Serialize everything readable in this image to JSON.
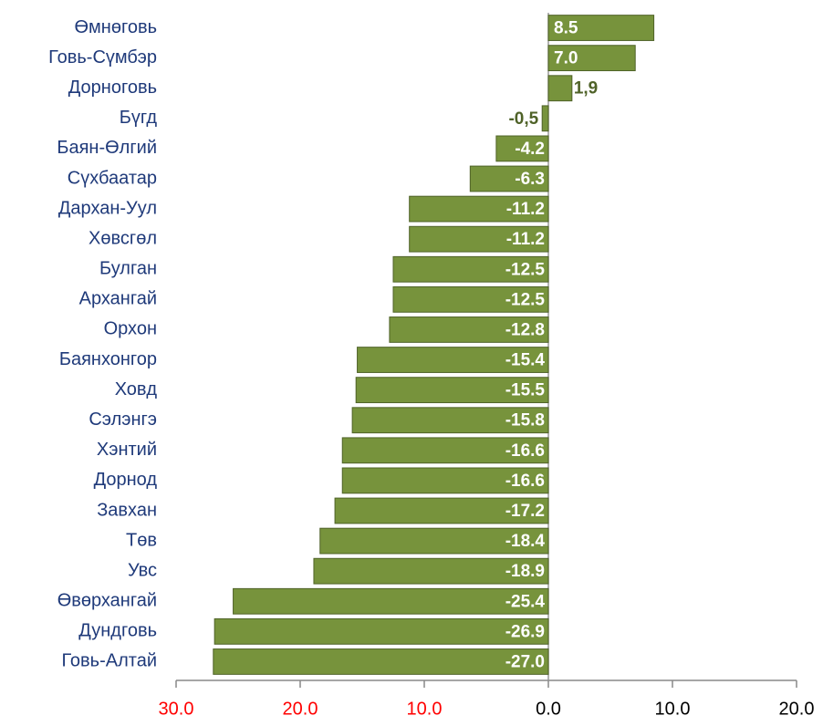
{
  "chart_data": {
    "type": "bar",
    "orientation": "horizontal",
    "categories": [
      "Өмнөговь",
      "Говь-Сүмбэр",
      "Дорноговь",
      "Бүгд",
      "Баян-Өлгий",
      "Сүхбаатар",
      "Дархан-Уул",
      "Хөвсгөл",
      "Булган",
      "Архангай",
      "Орхон",
      "Баянхонгор",
      "Ховд",
      "Сэлэнгэ",
      "Хэнтий",
      "Дорнод",
      "Завхан",
      "Төв",
      "Увс",
      "Өвөрхангай",
      "Дундговь",
      "Говь-Алтай"
    ],
    "values": [
      8.5,
      7.0,
      1.9,
      -0.5,
      -4.2,
      -6.3,
      -11.2,
      -11.2,
      -12.5,
      -12.5,
      -12.8,
      -15.4,
      -15.5,
      -15.8,
      -16.6,
      -16.6,
      -17.2,
      -18.4,
      -18.9,
      -25.4,
      -26.9,
      -27.0
    ],
    "value_labels": [
      "8.5",
      "7.0",
      "1,9",
      "-0,5",
      "-4.2",
      "-6.3",
      "-11.2",
      "-11.2",
      "-12.5",
      "-12.5",
      "-12.8",
      "-15.4",
      "-15.5",
      "-15.8",
      "-16.6",
      "-16.6",
      "-17.2",
      "-18.4",
      "-18.9",
      "-25.4",
      "-26.9",
      "-27.0"
    ],
    "color": "#77933c",
    "border_color": "#4f6228",
    "xlim": [
      -30,
      20
    ],
    "xticks": [
      {
        "value": -30,
        "label": "30.0"
      },
      {
        "value": -20,
        "label": "20.0"
      },
      {
        "value": -10,
        "label": "10.0"
      },
      {
        "value": 0,
        "label": "0.0"
      },
      {
        "value": 10,
        "label": "10.0"
      },
      {
        "value": 20,
        "label": "20.0"
      }
    ],
    "negative_tick_color": "#ff0000",
    "tick_color": "#000000"
  }
}
